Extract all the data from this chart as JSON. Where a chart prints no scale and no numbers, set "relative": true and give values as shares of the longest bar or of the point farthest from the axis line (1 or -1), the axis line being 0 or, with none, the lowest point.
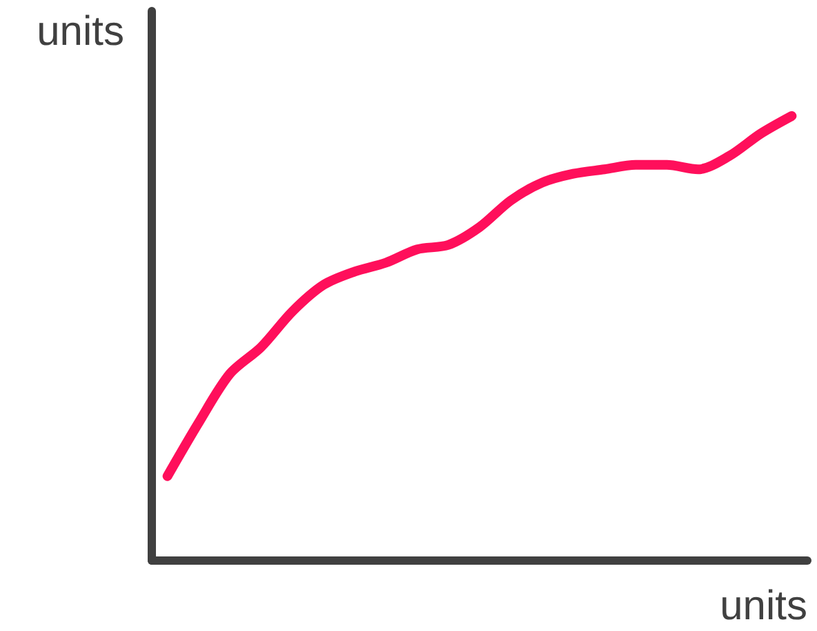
{
  "chart_data": {
    "type": "line",
    "xlabel": "units",
    "ylabel": "units",
    "relative": true,
    "categories": [
      null,
      null,
      null,
      null,
      null,
      null,
      null,
      null,
      null,
      null,
      null,
      null,
      null,
      null,
      null,
      null,
      null,
      null,
      null,
      null,
      null
    ],
    "series": [
      {
        "color": "#ff0f5b",
        "values": [
          0.19,
          0.31,
          0.42,
          0.48,
          0.56,
          0.62,
          0.65,
          0.67,
          0.7,
          0.71,
          0.75,
          0.81,
          0.85,
          0.87,
          0.88,
          0.89,
          0.89,
          0.88,
          0.91,
          0.96,
          1
        ]
      }
    ],
    "grid": false,
    "line_style": "solid"
  }
}
